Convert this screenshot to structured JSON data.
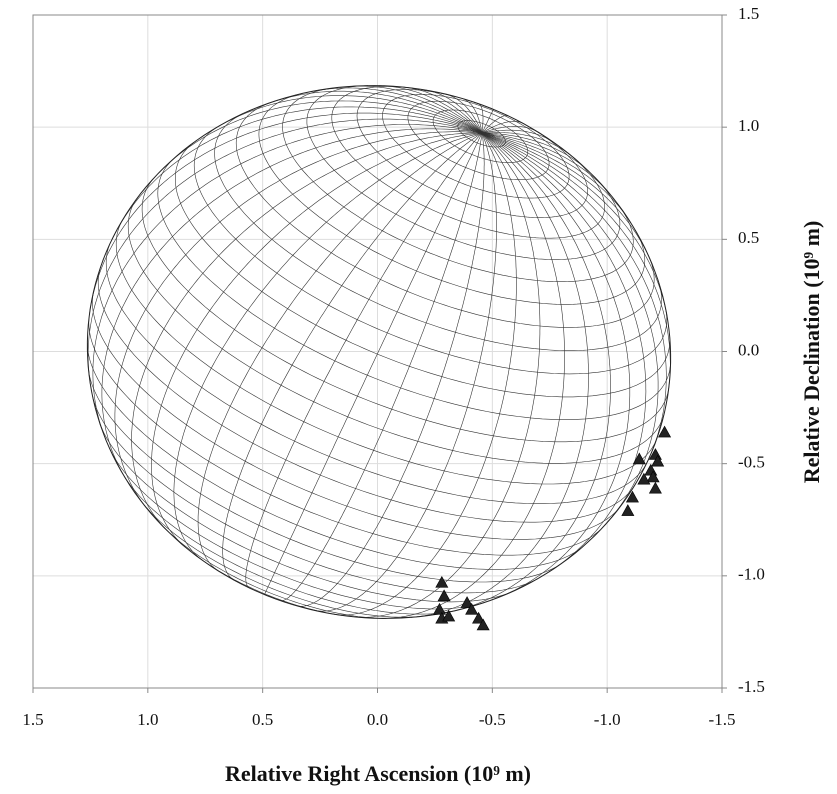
{
  "chart_data": {
    "type": "scatter",
    "x_label": "Relative Right Ascension (10⁹ m)",
    "y_label": "Relative Declination (10⁹ m)",
    "x": [
      -1.25,
      -1.14,
      -1.21,
      -1.22,
      -1.19,
      -1.2,
      -1.21,
      -1.16,
      -1.11,
      -1.09,
      -0.28,
      -0.29,
      -0.27,
      -0.28,
      -0.31,
      -0.39,
      -0.41,
      -0.44,
      -0.46
    ],
    "values": [
      -0.36,
      -0.48,
      -0.46,
      -0.49,
      -0.53,
      -0.56,
      -0.61,
      -0.57,
      -0.65,
      -0.71,
      -1.03,
      -1.09,
      -1.15,
      -1.19,
      -1.18,
      -1.12,
      -1.15,
      -1.19,
      -1.22
    ],
    "color": "#222222",
    "xlim": [
      1.5,
      -1.5
    ],
    "ylim": [
      -1.5,
      1.5
    ],
    "xticks": [
      1.5,
      {
        "value": 1,
        "label": "1.0"
      },
      0.5,
      {
        "value": 0,
        "label": "0.0"
      },
      -0.5,
      {
        "value": -1,
        "label": "-1.0"
      },
      -1.5
    ],
    "yticks": [
      1.5,
      {
        "value": 1,
        "label": "1.0"
      },
      0.5,
      {
        "value": 0,
        "label": "0.0"
      },
      -0.5,
      {
        "value": -1,
        "label": "-1.0"
      },
      -1.5
    ],
    "grid": true
  }
}
